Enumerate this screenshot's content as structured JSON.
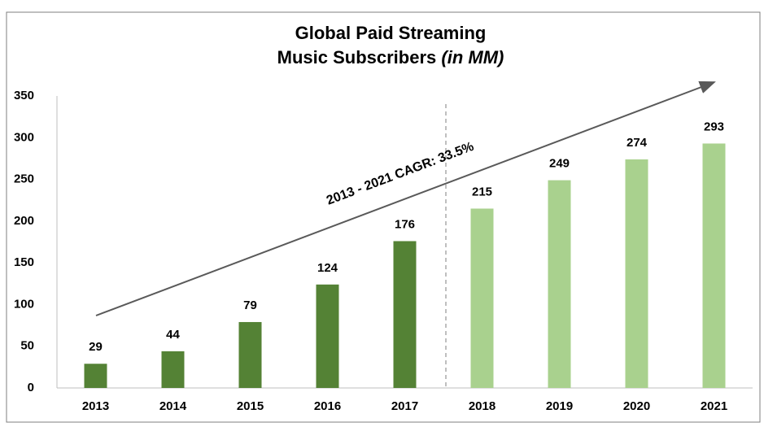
{
  "chart_data": {
    "type": "bar",
    "title_lines": [
      "Global Paid Streaming",
      "Music Subscribers"
    ],
    "title_unit": "(in MM)",
    "annotation": "2013 - 2021 CAGR: 33.5%",
    "categories": [
      "2013",
      "2014",
      "2015",
      "2016",
      "2017",
      "2018",
      "2019",
      "2020",
      "2021"
    ],
    "values": [
      29,
      44,
      79,
      124,
      176,
      215,
      249,
      274,
      293
    ],
    "colors": [
      "#548235",
      "#548235",
      "#548235",
      "#548235",
      "#548235",
      "#a9d18e",
      "#a9d18e",
      "#a9d18e",
      "#a9d18e"
    ],
    "ylim": [
      0,
      350
    ],
    "yticks": [
      0,
      50,
      100,
      150,
      200,
      250,
      300,
      350
    ],
    "grid": false
  }
}
